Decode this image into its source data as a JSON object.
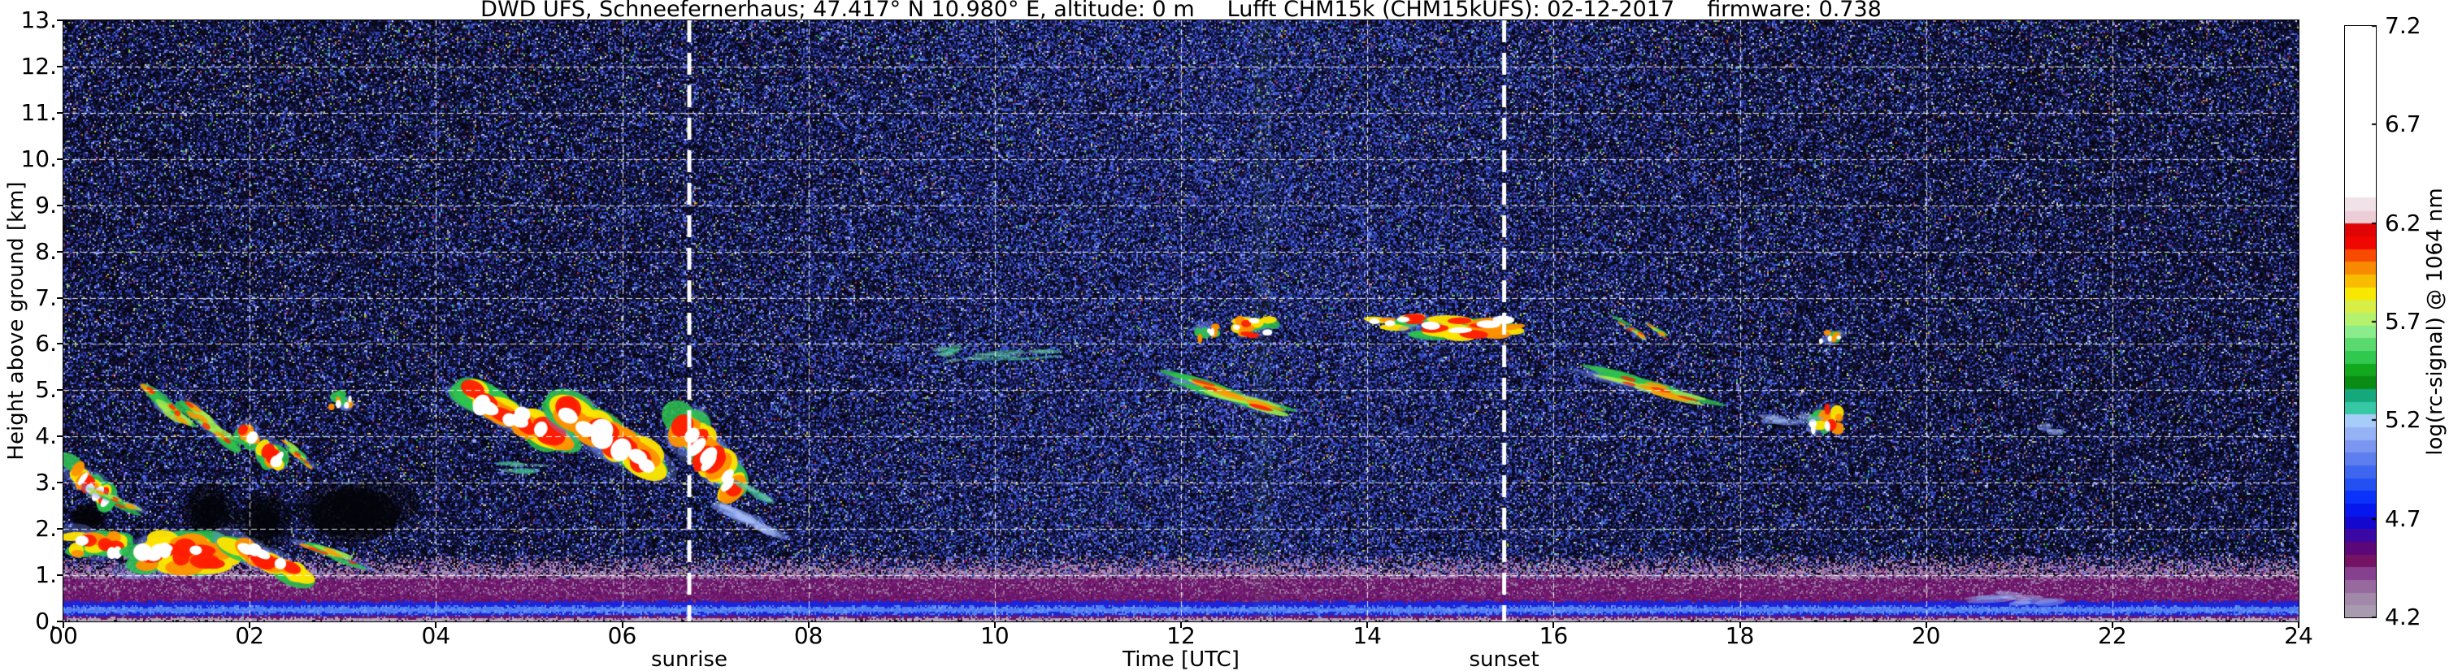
{
  "title": {
    "site": "DWD UFS, Schneefernerhaus; 47.417° N 10.980° E, altitude: 0 m",
    "instrument": "Lufft CHM15k (CHM15kUFS): 02-12-2017",
    "firmware": "firmware: 0.738"
  },
  "chart_data": {
    "type": "heatmap",
    "title": "DWD UFS, Schneefernerhaus; 47.417° N 10.980° E, altitude: 0 m  Lufft CHM15k (CHM15kUFS): 02-12-2017  firmware: 0.738",
    "xlabel": "Time [UTC]",
    "ylabel": "Height above ground [km]",
    "xlim": [
      0,
      24
    ],
    "ylim": [
      0,
      13
    ],
    "x_ticks": {
      "values": [
        0,
        2,
        4,
        6,
        8,
        10,
        12,
        14,
        16,
        18,
        20,
        22,
        24
      ],
      "labels": [
        "00",
        "02",
        "04",
        "06",
        "08",
        "10",
        "12",
        "14",
        "16",
        "18",
        "20",
        "22",
        "24"
      ]
    },
    "y_ticks": {
      "values": [
        0,
        1,
        2,
        3,
        4,
        5,
        6,
        7,
        8,
        9,
        10,
        11,
        12,
        13
      ],
      "labels": [
        "0.",
        "1.",
        "2.",
        "3.",
        "4.",
        "5.",
        "6.",
        "7.",
        "8.",
        "9.",
        "10.",
        "11.",
        "12.",
        "13."
      ]
    },
    "grid": {
      "visible": true,
      "color": "#ffffff",
      "style": "dashed",
      "x_step_hours": 2,
      "y_step_km": 1
    },
    "colorbar": {
      "label": "log(rc-signal) @ 1064 nm",
      "min": 4.2,
      "max": 7.2,
      "tick_values": [
        7.2,
        6.7,
        6.2,
        5.7,
        5.2,
        4.7,
        4.2
      ],
      "tick_labels": [
        "7.2",
        "6.7",
        "6.2",
        "5.7",
        "5.2",
        "4.7",
        "4.2"
      ],
      "white_above": 6.33,
      "bands": [
        "#a89bb0",
        "#a289a9",
        "#97699e",
        "#85408e",
        "#741264",
        "#5c0778",
        "#3b07a4",
        "#1408d0",
        "#0616ee",
        "#0a32fa",
        "#2450f2",
        "#3e66f0",
        "#5c7eee",
        "#7a96f0",
        "#94b2f4",
        "#a6ccf8",
        "#36c8a4",
        "#14a87c",
        "#0a8c14",
        "#11a81e",
        "#30c84e",
        "#5ada6e",
        "#8aec8a",
        "#b4f26e",
        "#d8ee46",
        "#f8e800",
        "#f8bc00",
        "#f88a00",
        "#f84a00",
        "#f00800",
        "#e00404",
        "#eccdd6",
        "#f0e2e8"
      ]
    },
    "sun_lines": {
      "sunrise_hour": 6.72,
      "sunset_hour": 15.47,
      "color": "#ffffff"
    },
    "annotations": {
      "sunrise": "sunrise",
      "sunset": "sunset"
    },
    "noise": {
      "dark": [
        "#050510",
        "#0e0e2c",
        "#191946"
      ],
      "blues": [
        "#2a3aa8",
        "#3d59d6",
        "#7388e4",
        "#aab8f2"
      ],
      "specks": [
        "#2fb446",
        "#3ec0c0",
        "#c6c634",
        "#8fd040",
        "#c87830",
        "#a844a0",
        "#b83434",
        "#e8e8e8"
      ],
      "day_center_hour": 12.4,
      "day_sigma": 3.4
    },
    "boundary_layer": {
      "haze_top_km": 1.5,
      "haze_colors": [
        "#9a7aa2",
        "#8a5a92",
        "#b294ba",
        "#6d1a6a"
      ],
      "solid_top_km": 0.95,
      "solid_colors": [
        "#6d156a",
        "#7b2a7a",
        "#8c4490",
        "#5a0f58"
      ],
      "solid_speckle": "#9a7aa2",
      "blue_band": {
        "bottom_km": 0.14,
        "top_km": 0.45,
        "edge_color": "#1b24d8",
        "core_bottom_km": 0.2,
        "core_top_km": 0.335,
        "core_color": "#4f7cf0",
        "light_color": "#6e9af6"
      },
      "base_strip": {
        "top_km": 0.085,
        "color": "#b4a6be",
        "speckle": "#9c8cac"
      }
    },
    "cloud_palettes": {
      "core": [
        [
          "#6f8cf0",
          0.35,
          1.0,
          0.6
        ],
        [
          "#2ec24e",
          0.85,
          0.88,
          0.55
        ],
        [
          "#ffe400",
          0.95,
          0.7,
          0.5
        ],
        [
          "#ff9000",
          0.95,
          0.58,
          0.46
        ],
        [
          "#ff1c00",
          0.95,
          0.46,
          0.42
        ],
        [
          "#ffffff",
          1.0,
          0.34,
          0.4
        ]
      ],
      "streak": [
        [
          "#6f8cf0",
          0.3,
          1.0,
          0.32
        ],
        [
          "#2ec24e",
          0.8,
          0.85,
          0.24
        ],
        [
          "#a8e84e",
          0.8,
          0.6,
          0.2
        ],
        [
          "#ff9800",
          0.85,
          0.44,
          0.16
        ],
        [
          "#ff2400",
          0.8,
          0.28,
          0.13
        ]
      ],
      "faint": [
        [
          "#49c79b",
          0.5,
          1.0,
          0.32
        ],
        [
          "#7fd9b6",
          0.45,
          0.7,
          0.22
        ]
      ],
      "wisp": [
        [
          "#8aa4f2",
          0.5,
          1.0,
          0.4
        ],
        [
          "#b0c4fa",
          0.5,
          0.6,
          0.28
        ]
      ],
      "dot": [
        [
          "#6f8cf0",
          0.5,
          1.0,
          0.65
        ],
        [
          "#2ec24e",
          0.9,
          0.8,
          0.6
        ],
        [
          "#ff9000",
          0.95,
          0.6,
          0.55
        ],
        [
          "#ffffff",
          1.0,
          0.4,
          0.5
        ]
      ]
    },
    "clouds": [
      {
        "t0": 0.0,
        "t1": 0.5,
        "h0": 2.55,
        "h1": 3.5,
        "style": "core",
        "tilt": 1
      },
      {
        "t0": 0.3,
        "t1": 0.8,
        "h0": 2.35,
        "h1": 2.9,
        "style": "streak",
        "tilt": 1
      },
      {
        "t0": 0.0,
        "t1": 0.65,
        "h0": 1.35,
        "h1": 2.05,
        "style": "core",
        "tilt": 0
      },
      {
        "t0": 0.75,
        "t1": 1.8,
        "h0": 0.95,
        "h1": 1.95,
        "style": "core",
        "tilt": 0
      },
      {
        "t0": 1.75,
        "t1": 2.6,
        "h0": 0.9,
        "h1": 1.8,
        "style": "core",
        "tilt": 1
      },
      {
        "t0": 2.55,
        "t1": 3.2,
        "h0": 1.2,
        "h1": 1.75,
        "style": "streak",
        "tilt": 1
      },
      {
        "t0": 0.85,
        "t1": 1.35,
        "h0": 4.2,
        "h1": 5.1,
        "style": "streak",
        "tilt": 1
      },
      {
        "t0": 1.3,
        "t1": 1.85,
        "h0": 3.75,
        "h1": 4.7,
        "style": "streak",
        "tilt": 1
      },
      {
        "t0": 1.85,
        "t1": 2.35,
        "h0": 3.35,
        "h1": 4.3,
        "style": "core",
        "tilt": 1
      },
      {
        "t0": 2.35,
        "t1": 2.7,
        "h0": 3.3,
        "h1": 3.9,
        "style": "streak",
        "tilt": 1
      },
      {
        "t0": 2.85,
        "t1": 3.1,
        "h0": 4.5,
        "h1": 5.0,
        "style": "dot",
        "tilt": 0
      },
      {
        "t0": 4.3,
        "t1": 5.4,
        "h0": 3.85,
        "h1": 5.05,
        "style": "core",
        "tilt": 1
      },
      {
        "t0": 5.3,
        "t1": 6.4,
        "h0": 3.3,
        "h1": 4.7,
        "style": "core",
        "tilt": 1
      },
      {
        "t0": 4.7,
        "t1": 5.15,
        "h0": 3.15,
        "h1": 3.6,
        "style": "faint",
        "tilt": 0
      },
      {
        "t0": 6.55,
        "t1": 7.25,
        "h0": 2.85,
        "h1": 4.5,
        "style": "core",
        "tilt": 1
      },
      {
        "t0": 7.0,
        "t1": 7.65,
        "h0": 1.85,
        "h1": 2.55,
        "style": "wisp",
        "tilt": 1
      },
      {
        "t0": 7.2,
        "t1": 7.6,
        "h0": 2.55,
        "h1": 3.1,
        "style": "faint",
        "tilt": 1
      },
      {
        "t0": 9.35,
        "t1": 9.7,
        "h0": 5.5,
        "h1": 6.0,
        "style": "faint",
        "tilt": 0
      },
      {
        "t0": 9.7,
        "t1": 10.65,
        "h0": 5.6,
        "h1": 5.95,
        "style": "faint",
        "tilt": 0
      },
      {
        "t0": 12.0,
        "t1": 13.1,
        "h0": 4.5,
        "h1": 5.25,
        "style": "streak",
        "tilt": 1
      },
      {
        "t0": 12.15,
        "t1": 12.4,
        "h0": 6.05,
        "h1": 6.45,
        "style": "dot",
        "tilt": 0
      },
      {
        "t0": 12.55,
        "t1": 13.05,
        "h0": 6.1,
        "h1": 6.6,
        "style": "core",
        "tilt": 0
      },
      {
        "t0": 13.95,
        "t1": 14.65,
        "h0": 6.3,
        "h1": 6.65,
        "style": "core",
        "tilt": 0
      },
      {
        "t0": 14.55,
        "t1": 15.65,
        "h0": 6.1,
        "h1": 6.6,
        "style": "core",
        "tilt": 0
      },
      {
        "t0": 16.4,
        "t1": 17.55,
        "h0": 4.75,
        "h1": 5.45,
        "style": "streak",
        "tilt": 1
      },
      {
        "t0": 16.7,
        "t1": 17.0,
        "h0": 6.1,
        "h1": 6.5,
        "style": "streak",
        "tilt": 1
      },
      {
        "t0": 17.0,
        "t1": 17.25,
        "h0": 6.1,
        "h1": 6.45,
        "style": "streak",
        "tilt": 1
      },
      {
        "t0": 18.85,
        "t1": 19.1,
        "h0": 6.0,
        "h1": 6.3,
        "style": "dot",
        "tilt": 0
      },
      {
        "t0": 18.75,
        "t1": 19.1,
        "h0": 4.05,
        "h1": 4.7,
        "style": "core",
        "tilt": 0
      },
      {
        "t0": 18.3,
        "t1": 18.8,
        "h0": 4.15,
        "h1": 4.55,
        "style": "wisp",
        "tilt": 0
      },
      {
        "t0": 21.25,
        "t1": 21.5,
        "h0": 4.0,
        "h1": 4.4,
        "style": "wisp",
        "tilt": 0
      },
      {
        "t0": 20.6,
        "t1": 21.4,
        "h0": 0.25,
        "h1": 0.7,
        "style": "wisp",
        "tilt": 0
      }
    ],
    "shadows": [
      {
        "t0": 1.35,
        "t1": 1.8,
        "h0": 1.9,
        "h1": 2.95
      },
      {
        "t0": 1.95,
        "t1": 2.4,
        "h0": 1.65,
        "h1": 2.6
      },
      {
        "t0": 2.55,
        "t1": 3.6,
        "h0": 1.9,
        "h1": 3.1
      },
      {
        "t0": 0.15,
        "t1": 0.5,
        "h0": 1.95,
        "h1": 2.5
      }
    ],
    "artifact_column": {
      "t0": 12.78,
      "t1": 12.98,
      "color": "#8cdc8c",
      "alpha": 0.06
    }
  }
}
